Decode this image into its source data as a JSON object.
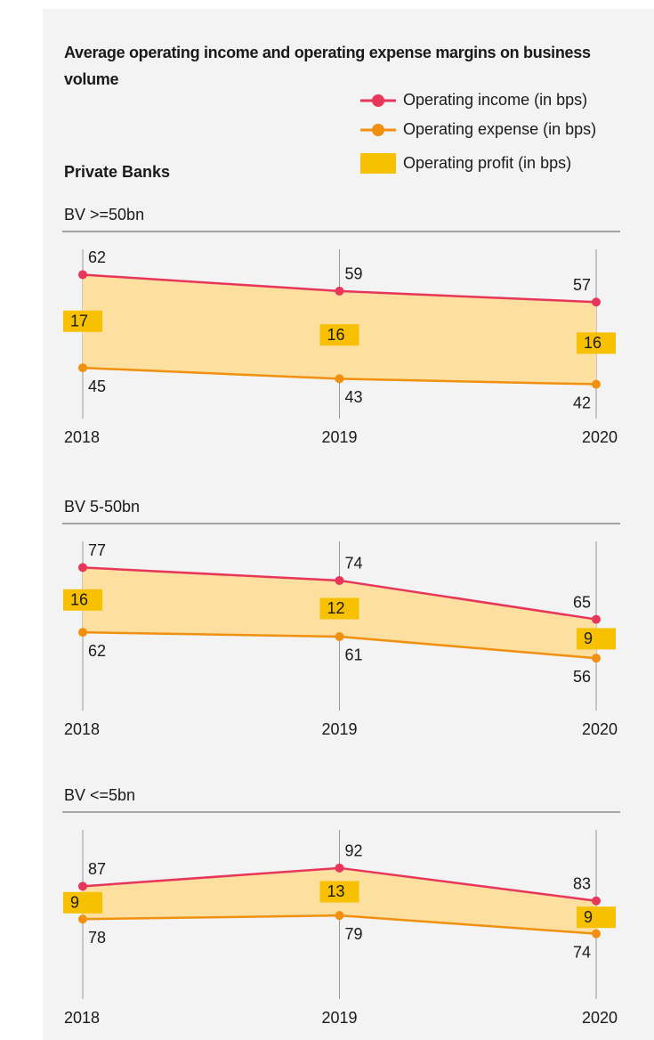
{
  "title": "Average operating income and operating expense margins on business volume",
  "subtitle": "Private Banks",
  "chart_data": [
    {
      "type": "line",
      "title": "BV >=50bn",
      "categories": [
        "2018",
        "2019",
        "2020"
      ],
      "ylim": [
        39,
        65
      ],
      "series": [
        {
          "name": "Operating income (in bps)",
          "color": "#e8365a",
          "values": [
            62,
            59,
            57
          ]
        },
        {
          "name": "Operating expense (in bps)",
          "color": "#f0900e",
          "values": [
            45,
            43,
            42
          ]
        },
        {
          "name": "Operating profit (in bps)",
          "color": "#f7c000",
          "values": [
            17,
            16,
            16
          ]
        }
      ]
    },
    {
      "type": "line",
      "title": "BV 5-50bn",
      "categories": [
        "2018",
        "2019",
        "2020"
      ],
      "ylim": [
        48,
        81
      ],
      "series": [
        {
          "name": "Operating income (in bps)",
          "color": "#e8365a",
          "values": [
            77,
            74,
            65
          ]
        },
        {
          "name": "Operating expense (in bps)",
          "color": "#f0900e",
          "values": [
            62,
            61,
            56
          ]
        },
        {
          "name": "Operating profit (in bps)",
          "color": "#f7c000",
          "values": [
            16,
            12,
            9
          ]
        }
      ]
    },
    {
      "type": "line",
      "title": "BV <=5bn",
      "categories": [
        "2018",
        "2019",
        "2020"
      ],
      "ylim": [
        61,
        100
      ],
      "series": [
        {
          "name": "Operating income (in bps)",
          "color": "#e8365a",
          "values": [
            87,
            92,
            83
          ]
        },
        {
          "name": "Operating expense (in bps)",
          "color": "#f0900e",
          "values": [
            78,
            79,
            74
          ]
        },
        {
          "name": "Operating profit (in bps)",
          "color": "#f7c000",
          "values": [
            9,
            13,
            9
          ]
        }
      ]
    }
  ]
}
